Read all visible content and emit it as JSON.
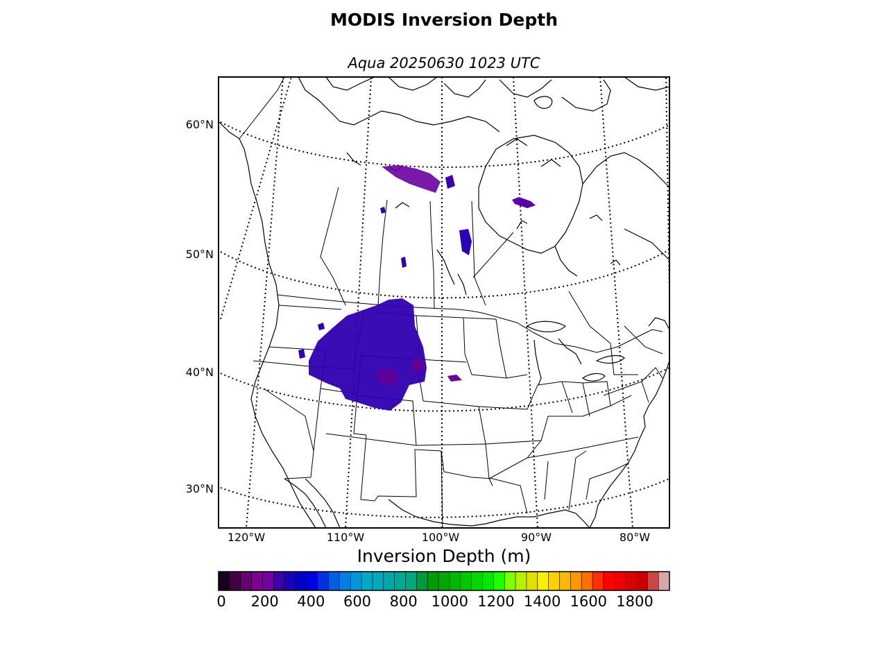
{
  "title": "MODIS Inversion Depth",
  "subtitle": "Aqua 20250630 1023 UTC",
  "map": {
    "projection": "lambert-conformal",
    "latitude_labels": [
      "60°N",
      "50°N",
      "40°N",
      "30°N"
    ],
    "longitude_labels": [
      "120°W",
      "110°W",
      "100°W",
      "90°W",
      "80°W"
    ],
    "graticule_style": "dotted"
  },
  "colorbar": {
    "label": "Inversion Depth (m)",
    "min": 0,
    "max": 1950,
    "step": 50,
    "tick_labels": [
      "0",
      "200",
      "400",
      "600",
      "800",
      "1000",
      "1200",
      "1400",
      "1600",
      "1800"
    ],
    "colors": [
      "#1a0020",
      "#420046",
      "#6a0070",
      "#7e0090",
      "#7000a0",
      "#3d00a8",
      "#1a00b8",
      "#0000c8",
      "#0000e0",
      "#0030e0",
      "#0060e0",
      "#0080e0",
      "#0098d8",
      "#00a8c8",
      "#00a8b8",
      "#00a8a8",
      "#00a898",
      "#00a880",
      "#009840",
      "#009c00",
      "#00a800",
      "#00b800",
      "#00c800",
      "#00d800",
      "#00e800",
      "#20ff00",
      "#80ff00",
      "#b8f000",
      "#e0e000",
      "#f8f000",
      "#ffd000",
      "#ffb800",
      "#ff9800",
      "#ff7000",
      "#ff3000",
      "#ff0000",
      "#ee0000",
      "#d80000",
      "#c80000",
      "#c84848",
      "#d8a8a8"
    ]
  },
  "inversion_regions": [
    {
      "name": "central-rockies-plains",
      "depth_m": 300
    },
    {
      "name": "eastern-colorado-patch",
      "depth_m": 150
    },
    {
      "name": "northern-saskatchewan",
      "depth_m": 150
    },
    {
      "name": "northern-manitoba",
      "depth_m": 200
    },
    {
      "name": "central-manitoba",
      "depth_m": 300
    },
    {
      "name": "northern-quebec",
      "depth_m": 200
    }
  ]
}
